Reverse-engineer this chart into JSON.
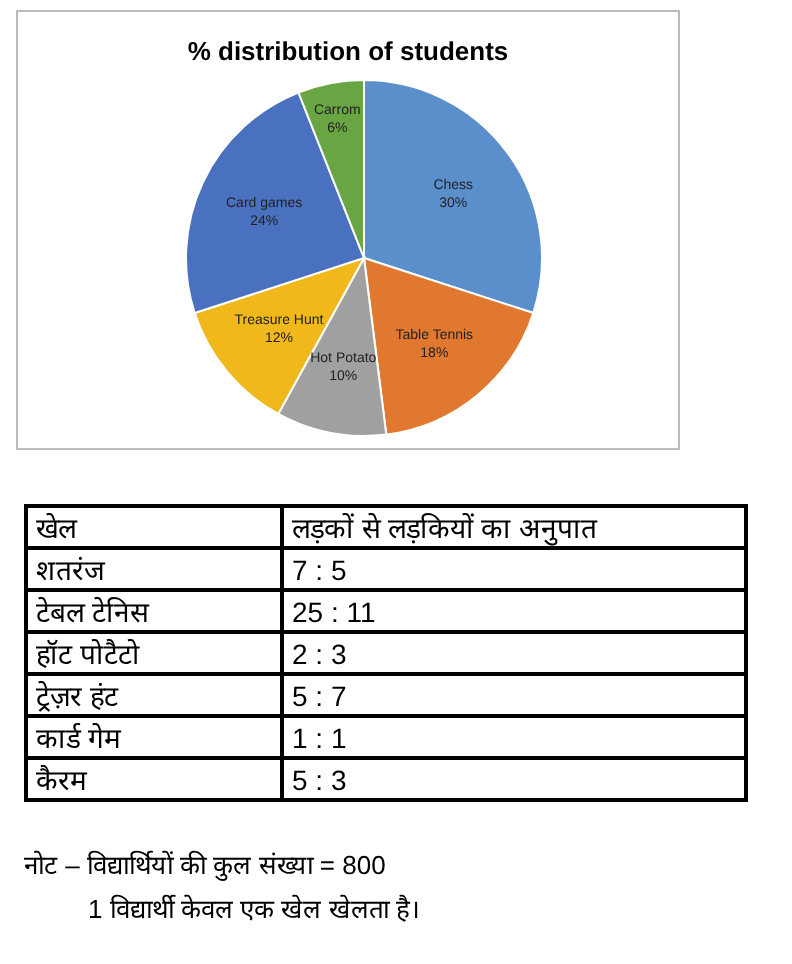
{
  "chart_data": [
    {
      "type": "pie",
      "title": "% distribution of students",
      "categories": [
        "Chess",
        "Table Tennis",
        "Hot Potato",
        "Treasure Hunt",
        "Card games",
        "Carrom"
      ],
      "values": [
        30,
        18,
        10,
        12,
        24,
        6
      ],
      "colors": [
        "#5b8fcb",
        "#e0782f",
        "#a0a0a0",
        "#f0b81a",
        "#4a71c0",
        "#6aa544"
      ],
      "value_labels": [
        "30%",
        "18%",
        "10%",
        "12%",
        "24%",
        "6%"
      ]
    },
    {
      "type": "other",
      "categories": [
        "खेल",
        "शतरंज",
        "टेबल टेनिस",
        "हॉट पोटैटो",
        "ट्रेज़र हंट",
        "कार्ड गेम",
        "कैरम"
      ],
      "value_labels": [
        "लड़कों से लड़कियों का अनुपात",
        "7 : 5",
        "25 : 11",
        "2 : 3",
        "5 : 7",
        "1 : 1",
        "5 : 3"
      ],
      "annotations": [
        "नोट – विद्यार्थियों की कुल संख्या  = 800",
        "1 विद्यार्थी केवल एक खेल खेलता है।"
      ]
    }
  ]
}
